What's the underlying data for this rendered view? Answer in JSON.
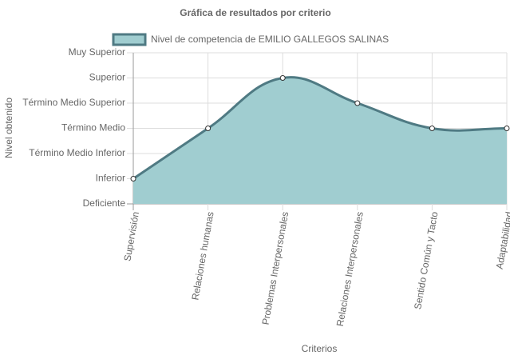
{
  "chart_data": {
    "type": "area",
    "title": "Gráfica de resultados por criterio",
    "x_label": "Criterios",
    "y_label": "Nivel obtenido",
    "categories": [
      "Supervisión",
      "Relaciones humanas",
      "Problemas Interpersonales",
      "Relaciones Interpersonales",
      "Sentido Común y Tacto",
      "Adaptabilidad"
    ],
    "series": [
      {
        "name": "Nivel de competencia de EMILIO GALLEGOS SALINAS",
        "color": "#4f7a83",
        "fill": "#a0cdd0",
        "values": [
          1,
          3,
          5,
          4,
          3,
          3
        ]
      }
    ],
    "ylim": [
      0,
      6
    ],
    "yticks": [
      {
        "value": 0,
        "label": "Deficiente"
      },
      {
        "value": 1,
        "label": "Inferior"
      },
      {
        "value": 2,
        "label": "Término Medio Inferior"
      },
      {
        "value": 3,
        "label": "Término Medio"
      },
      {
        "value": 4,
        "label": "Término Medio Superior"
      },
      {
        "value": 5,
        "label": "Superior"
      },
      {
        "value": 6,
        "label": "Muy Superior"
      }
    ],
    "grid": true,
    "legend": "top"
  }
}
